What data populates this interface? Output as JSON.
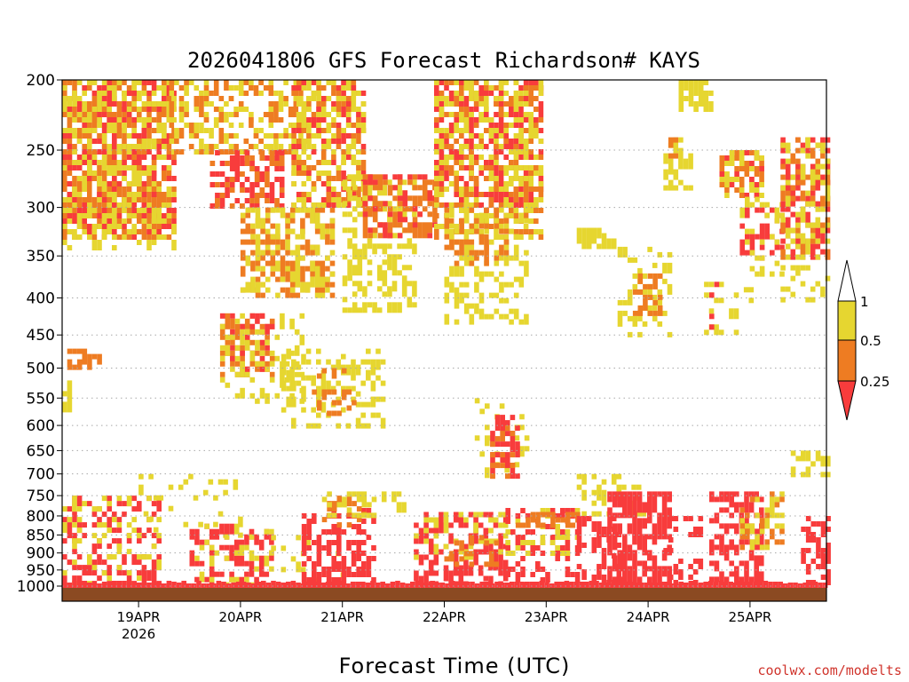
{
  "chart_data": {
    "type": "heatmap",
    "title": "2026041806 GFS Forecast Richardson# KAYS",
    "xlabel": "Forecast Time (UTC)",
    "credit": "coolwx.com/modelts",
    "x_ticks": [
      {
        "label": "19APR",
        "sub": "2026",
        "day": 1
      },
      {
        "label": "20APR",
        "sub": "",
        "day": 2
      },
      {
        "label": "21APR",
        "sub": "",
        "day": 3
      },
      {
        "label": "22APR",
        "sub": "",
        "day": 4
      },
      {
        "label": "23APR",
        "sub": "",
        "day": 5
      },
      {
        "label": "24APR",
        "sub": "",
        "day": 6
      },
      {
        "label": "25APR",
        "sub": "",
        "day": 7
      }
    ],
    "xlim_days": [
      0.25,
      7.75
    ],
    "y_ticks": [
      {
        "label": "200",
        "p": 200
      },
      {
        "label": "250",
        "p": 250
      },
      {
        "label": "300",
        "p": 300
      },
      {
        "label": "350",
        "p": 350
      },
      {
        "label": "400",
        "p": 400
      },
      {
        "label": "450",
        "p": 450
      },
      {
        "label": "500",
        "p": 500
      },
      {
        "label": "550",
        "p": 550
      },
      {
        "label": "600",
        "p": 600
      },
      {
        "label": "650",
        "p": 650
      },
      {
        "label": "700",
        "p": 700
      },
      {
        "label": "750",
        "p": 750
      },
      {
        "label": "800",
        "p": 800
      },
      {
        "label": "850",
        "p": 850
      },
      {
        "label": "900",
        "p": 900
      },
      {
        "label": "950",
        "p": 950
      },
      {
        "label": "1000",
        "p": 1000
      }
    ],
    "y_scale": "log-pressure",
    "ylim_hpa": [
      200,
      1025
    ],
    "grid": "dotted",
    "legend": {
      "placement": "right",
      "labels": [
        "1",
        "0.5",
        "0.25"
      ],
      "bins": [
        {
          "range": "< 0.25",
          "color": "#f83c3c"
        },
        {
          "range": "0.25 - 0.5",
          "color": "#ee7c22"
        },
        {
          "range": "0.5 - 1",
          "color": "#e6d630"
        },
        {
          "range": "> 1",
          "color": "#ffffff"
        }
      ]
    },
    "colors": {
      "low": "#f83c3c",
      "mid": "#ee7c22",
      "high": "#e6d630",
      "ground": "#8b4a22"
    },
    "regions": [
      {
        "x0": 0.25,
        "x1": 1.35,
        "p0": 200,
        "p1": 330,
        "level": "mid",
        "density": 0.55
      },
      {
        "x0": 0.25,
        "x1": 1.35,
        "p0": 200,
        "p1": 330,
        "level": "low",
        "density": 0.3
      },
      {
        "x0": 0.25,
        "x1": 1.35,
        "p0": 200,
        "p1": 340,
        "level": "high",
        "density": 0.35
      },
      {
        "x0": 1.3,
        "x1": 2.6,
        "p0": 200,
        "p1": 250,
        "level": "high",
        "density": 0.35
      },
      {
        "x0": 1.3,
        "x1": 2.6,
        "p0": 200,
        "p1": 250,
        "level": "mid",
        "density": 0.25
      },
      {
        "x0": 1.7,
        "x1": 2.4,
        "p0": 250,
        "p1": 300,
        "level": "low",
        "density": 0.5
      },
      {
        "x0": 1.7,
        "x1": 2.4,
        "p0": 250,
        "p1": 300,
        "level": "mid",
        "density": 0.25
      },
      {
        "x0": 2.0,
        "x1": 2.9,
        "p0": 300,
        "p1": 400,
        "level": "mid",
        "density": 0.45
      },
      {
        "x0": 2.0,
        "x1": 2.9,
        "p0": 300,
        "p1": 400,
        "level": "high",
        "density": 0.35
      },
      {
        "x0": 2.5,
        "x1": 3.2,
        "p0": 200,
        "p1": 300,
        "level": "mid",
        "density": 0.3
      },
      {
        "x0": 2.5,
        "x1": 3.2,
        "p0": 200,
        "p1": 300,
        "level": "low",
        "density": 0.2
      },
      {
        "x0": 2.5,
        "x1": 3.2,
        "p0": 200,
        "p1": 300,
        "level": "high",
        "density": 0.3
      },
      {
        "x0": 3.0,
        "x1": 3.7,
        "p0": 270,
        "p1": 420,
        "level": "high",
        "density": 0.45
      },
      {
        "x0": 3.2,
        "x1": 3.9,
        "p0": 270,
        "p1": 330,
        "level": "mid",
        "density": 0.45
      },
      {
        "x0": 3.2,
        "x1": 3.9,
        "p0": 270,
        "p1": 330,
        "level": "low",
        "density": 0.25
      },
      {
        "x0": 3.9,
        "x1": 4.95,
        "p0": 200,
        "p1": 300,
        "level": "low",
        "density": 0.45
      },
      {
        "x0": 3.9,
        "x1": 4.95,
        "p0": 200,
        "p1": 330,
        "level": "mid",
        "density": 0.25
      },
      {
        "x0": 3.9,
        "x1": 4.95,
        "p0": 200,
        "p1": 330,
        "level": "high",
        "density": 0.3
      },
      {
        "x0": 4.0,
        "x1": 4.8,
        "p0": 300,
        "p1": 430,
        "level": "high",
        "density": 0.35
      },
      {
        "x0": 4.0,
        "x1": 4.6,
        "p0": 300,
        "p1": 360,
        "level": "mid",
        "density": 0.3
      },
      {
        "x0": 0.3,
        "x1": 0.6,
        "p0": 470,
        "p1": 500,
        "level": "mid",
        "density": 0.7
      },
      {
        "x0": 0.25,
        "x1": 0.35,
        "p0": 520,
        "p1": 570,
        "level": "high",
        "density": 0.6
      },
      {
        "x0": 1.8,
        "x1": 2.3,
        "p0": 420,
        "p1": 510,
        "level": "mid",
        "density": 0.45
      },
      {
        "x0": 1.8,
        "x1": 2.3,
        "p0": 420,
        "p1": 510,
        "level": "low",
        "density": 0.25
      },
      {
        "x0": 1.8,
        "x1": 2.6,
        "p0": 420,
        "p1": 560,
        "level": "high",
        "density": 0.3
      },
      {
        "x0": 2.4,
        "x1": 3.4,
        "p0": 470,
        "p1": 600,
        "level": "high",
        "density": 0.4
      },
      {
        "x0": 2.7,
        "x1": 3.1,
        "p0": 500,
        "p1": 580,
        "level": "mid",
        "density": 0.25
      },
      {
        "x0": 4.25,
        "x1": 4.8,
        "p0": 550,
        "p1": 700,
        "level": "high",
        "density": 0.12
      },
      {
        "x0": 4.45,
        "x1": 4.7,
        "p0": 580,
        "p1": 700,
        "level": "low",
        "density": 0.45
      },
      {
        "x0": 4.45,
        "x1": 4.65,
        "p0": 600,
        "p1": 700,
        "level": "mid",
        "density": 0.2
      },
      {
        "x0": 5.3,
        "x1": 5.65,
        "p0": 320,
        "p1": 340,
        "level": "high",
        "density": 0.7
      },
      {
        "x0": 5.7,
        "x1": 6.2,
        "p0": 340,
        "p1": 450,
        "level": "high",
        "density": 0.3
      },
      {
        "x0": 5.85,
        "x1": 6.1,
        "p0": 370,
        "p1": 420,
        "level": "mid",
        "density": 0.5
      },
      {
        "x0": 6.3,
        "x1": 6.6,
        "p0": 200,
        "p1": 220,
        "level": "high",
        "density": 0.8
      },
      {
        "x0": 6.15,
        "x1": 6.4,
        "p0": 240,
        "p1": 280,
        "level": "high",
        "density": 0.5
      },
      {
        "x0": 6.15,
        "x1": 6.3,
        "p0": 240,
        "p1": 260,
        "level": "mid",
        "density": 0.5
      },
      {
        "x0": 6.7,
        "x1": 7.1,
        "p0": 250,
        "p1": 290,
        "level": "mid",
        "density": 0.55
      },
      {
        "x0": 6.7,
        "x1": 7.1,
        "p0": 250,
        "p1": 290,
        "level": "low",
        "density": 0.2
      },
      {
        "x0": 6.7,
        "x1": 7.1,
        "p0": 250,
        "p1": 290,
        "level": "high",
        "density": 0.2
      },
      {
        "x0": 6.9,
        "x1": 7.3,
        "p0": 300,
        "p1": 350,
        "level": "low",
        "density": 0.35
      },
      {
        "x0": 6.9,
        "x1": 7.3,
        "p0": 290,
        "p1": 370,
        "level": "high",
        "density": 0.3
      },
      {
        "x0": 7.3,
        "x1": 7.75,
        "p0": 240,
        "p1": 350,
        "level": "low",
        "density": 0.4
      },
      {
        "x0": 7.3,
        "x1": 7.75,
        "p0": 240,
        "p1": 350,
        "level": "mid",
        "density": 0.3
      },
      {
        "x0": 7.3,
        "x1": 7.75,
        "p0": 240,
        "p1": 400,
        "level": "high",
        "density": 0.25
      },
      {
        "x0": 6.5,
        "x1": 7.0,
        "p0": 380,
        "p1": 450,
        "level": "high",
        "density": 0.15
      },
      {
        "x0": 6.6,
        "x1": 6.7,
        "p0": 380,
        "p1": 440,
        "level": "low",
        "density": 0.35
      },
      {
        "x0": 0.25,
        "x1": 1.2,
        "p0": 750,
        "p1": 1000,
        "level": "low",
        "density": 0.35
      },
      {
        "x0": 0.25,
        "x1": 1.2,
        "p0": 750,
        "p1": 1000,
        "level": "high",
        "density": 0.2
      },
      {
        "x0": 1.0,
        "x1": 2.0,
        "p0": 700,
        "p1": 850,
        "level": "high",
        "density": 0.12
      },
      {
        "x0": 1.5,
        "x1": 2.3,
        "p0": 820,
        "p1": 1000,
        "level": "low",
        "density": 0.35
      },
      {
        "x0": 1.5,
        "x1": 2.3,
        "p0": 820,
        "p1": 1000,
        "level": "high",
        "density": 0.15
      },
      {
        "x0": 2.3,
        "x1": 3.0,
        "p0": 850,
        "p1": 1000,
        "level": "high",
        "density": 0.15
      },
      {
        "x0": 2.6,
        "x1": 3.3,
        "p0": 780,
        "p1": 1000,
        "level": "low",
        "density": 0.5
      },
      {
        "x0": 2.8,
        "x1": 3.2,
        "p0": 750,
        "p1": 820,
        "level": "mid",
        "density": 0.4
      },
      {
        "x0": 2.8,
        "x1": 3.6,
        "p0": 740,
        "p1": 800,
        "level": "high",
        "density": 0.25
      },
      {
        "x0": 3.7,
        "x1": 4.6,
        "p0": 790,
        "p1": 1000,
        "level": "low",
        "density": 0.5
      },
      {
        "x0": 3.7,
        "x1": 4.6,
        "p0": 790,
        "p1": 920,
        "level": "high",
        "density": 0.25
      },
      {
        "x0": 4.0,
        "x1": 4.5,
        "p0": 850,
        "p1": 930,
        "level": "mid",
        "density": 0.35
      },
      {
        "x0": 4.6,
        "x1": 5.3,
        "p0": 780,
        "p1": 1000,
        "level": "low",
        "density": 0.35
      },
      {
        "x0": 4.6,
        "x1": 5.3,
        "p0": 780,
        "p1": 900,
        "level": "high",
        "density": 0.25
      },
      {
        "x0": 4.7,
        "x1": 5.3,
        "p0": 790,
        "p1": 830,
        "level": "mid",
        "density": 0.5
      },
      {
        "x0": 5.3,
        "x1": 5.95,
        "p0": 700,
        "p1": 800,
        "level": "high",
        "density": 0.35
      },
      {
        "x0": 5.6,
        "x1": 6.2,
        "p0": 740,
        "p1": 1000,
        "level": "low",
        "density": 0.7
      },
      {
        "x0": 5.3,
        "x1": 5.7,
        "p0": 800,
        "p1": 1000,
        "level": "low",
        "density": 0.4
      },
      {
        "x0": 6.15,
        "x1": 6.5,
        "p0": 800,
        "p1": 1000,
        "level": "low",
        "density": 0.25
      },
      {
        "x0": 6.6,
        "x1": 7.1,
        "p0": 740,
        "p1": 1000,
        "level": "low",
        "density": 0.5
      },
      {
        "x0": 6.9,
        "x1": 7.3,
        "p0": 740,
        "p1": 880,
        "level": "high",
        "density": 0.3
      },
      {
        "x0": 6.9,
        "x1": 7.3,
        "p0": 740,
        "p1": 880,
        "level": "mid",
        "density": 0.2
      },
      {
        "x0": 7.4,
        "x1": 7.75,
        "p0": 650,
        "p1": 700,
        "level": "high",
        "density": 0.5
      },
      {
        "x0": 7.5,
        "x1": 7.75,
        "p0": 800,
        "p1": 1000,
        "level": "low",
        "density": 0.5
      }
    ]
  }
}
